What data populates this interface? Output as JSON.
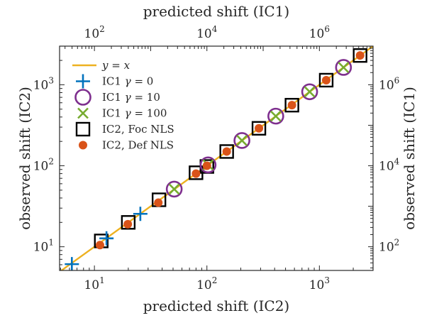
{
  "chart_data": {
    "type": "scatter",
    "title": "",
    "xlabel": "predicted shift (IC2)",
    "ylabel": "observed shift (IC2)",
    "x2label": "predicted shift (IC1)",
    "y2label": "observed shift (IC1)",
    "xscale": "log",
    "yscale": "log",
    "xlim": [
      4.9,
      3000
    ],
    "ylim": [
      5.1,
      3000
    ],
    "x2lim": [
      24,
      9000000
    ],
    "y2lim": [
      26,
      9000000
    ],
    "x_ticks": [
      {
        "base": "10",
        "exp": "1",
        "value": 10
      },
      {
        "base": "10",
        "exp": "2",
        "value": 100
      },
      {
        "base": "10",
        "exp": "3",
        "value": 1000
      }
    ],
    "y_ticks": [
      {
        "base": "10",
        "exp": "1",
        "value": 10
      },
      {
        "base": "10",
        "exp": "2",
        "value": 100
      },
      {
        "base": "10",
        "exp": "3",
        "value": 1000
      }
    ],
    "x2_ticks": [
      {
        "base": "10",
        "exp": "2",
        "value": 100
      },
      {
        "base": "10",
        "exp": "4",
        "value": 10000
      },
      {
        "base": "10",
        "exp": "6",
        "value": 1000000
      }
    ],
    "y2_ticks": [
      {
        "base": "10",
        "exp": "2",
        "value": 100
      },
      {
        "base": "10",
        "exp": "4",
        "value": 10000
      },
      {
        "base": "10",
        "exp": "6",
        "value": 1000000
      }
    ],
    "grid": false,
    "legend_position": "top-left",
    "series": [
      {
        "name": "y = x",
        "label_main": "y",
        "label_rest": " = x",
        "marker": "line",
        "color": "#EDB120",
        "x": [
          4.9,
          3000
        ],
        "y": [
          4.9,
          3000
        ]
      },
      {
        "name": "IC1 γ = 0",
        "label_main": "IC1 ",
        "label_sym": "γ",
        "label_rest": " = 0",
        "marker": "plus",
        "color": "#0072BD",
        "x": [
          6.3,
          12.8,
          25.6
        ],
        "y": [
          6.1,
          12.7,
          25.5
        ]
      },
      {
        "name": "IC1 γ = 10",
        "label_main": "IC1 ",
        "label_sym": "γ",
        "label_rest": " = 10",
        "marker": "circle",
        "color": "#7E2F8E",
        "x": [
          51.2,
          102.4,
          204.8,
          409.6,
          819.2,
          1638.4
        ],
        "y": [
          51.5,
          102.4,
          205,
          410,
          820,
          1638
        ]
      },
      {
        "name": "IC1 γ = 100",
        "label_main": "IC1 ",
        "label_sym": "γ",
        "label_rest": " = 100",
        "marker": "x",
        "color": "#77AC30",
        "x": [
          51.2,
          102.4,
          204.8,
          409.6,
          819.2,
          1638.4
        ],
        "y": [
          51.5,
          102.4,
          205,
          410,
          820,
          1638
        ]
      },
      {
        "name": "IC2, Foc NLS",
        "label_main": "IC2, Foc NLS",
        "marker": "square",
        "color": "#000000",
        "x": [
          11.5,
          20,
          37.5,
          80,
          100,
          150,
          290,
          570,
          1150,
          2300
        ],
        "y": [
          11.8,
          20,
          38,
          82,
          98,
          150,
          290,
          560,
          1140,
          2300
        ]
      },
      {
        "name": "IC2, Def NLS",
        "label_main": "IC2, Def NLS",
        "marker": "dot",
        "color": "#D95319",
        "x": [
          11.2,
          19.8,
          37,
          80,
          100,
          150,
          290,
          570,
          1150,
          2300
        ],
        "y": [
          10.5,
          19,
          35,
          80,
          100,
          150,
          290,
          560,
          1140,
          2300
        ]
      }
    ]
  }
}
